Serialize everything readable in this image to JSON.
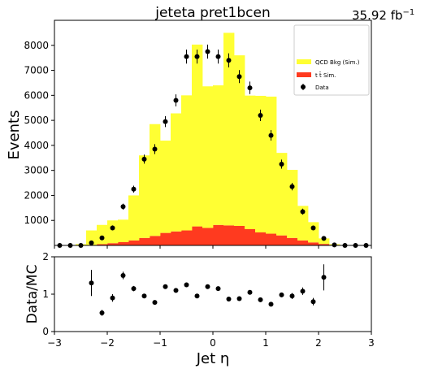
{
  "chart_data": [
    {
      "type": "bar",
      "title": "jeteta  pret1bcen",
      "luminosity_value": "35.92",
      "luminosity_unit": "fb",
      "luminosity_exponent": "−1",
      "ylabel": "Events",
      "xlim": [
        -3,
        3
      ],
      "ylim": [
        0,
        9000
      ],
      "x_ticks": [
        -3,
        -2,
        -1,
        0,
        1,
        2,
        3
      ],
      "y_ticks": [
        1000,
        2000,
        3000,
        4000,
        5000,
        6000,
        7000,
        8000
      ],
      "stacked": true,
      "bin_edges": [
        -3.0,
        -2.8,
        -2.6,
        -2.4,
        -2.2,
        -2.0,
        -1.8,
        -1.6,
        -1.4,
        -1.2,
        -1.0,
        -0.8,
        -0.6,
        -0.4,
        -0.2,
        0.0,
        0.2,
        0.4,
        0.6,
        0.8,
        1.0,
        1.2,
        1.4,
        1.6,
        1.8,
        2.0,
        2.2,
        2.4,
        2.6,
        2.8,
        3.0
      ],
      "series": [
        {
          "name": "t t̄ Sim.",
          "color": "#ff3a1f",
          "values": [
            0,
            0,
            0,
            20,
            50,
            90,
            130,
            200,
            300,
            380,
            500,
            560,
            600,
            760,
            700,
            820,
            800,
            780,
            650,
            520,
            470,
            400,
            300,
            200,
            120,
            60,
            20,
            0,
            0,
            0
          ]
        },
        {
          "name": "QCD Bkg (Sim.)",
          "color": "#ffff33",
          "values": [
            0,
            0,
            50,
            580,
            770,
            910,
            900,
            1800,
            3300,
            4470,
            3690,
            4720,
            5400,
            7270,
            5660,
            5580,
            7700,
            6820,
            5340,
            5460,
            5480,
            3300,
            2720,
            1380,
            810,
            220,
            30,
            0,
            0,
            0
          ]
        }
      ],
      "data_points": {
        "name": "Data",
        "color": "#000000",
        "x": [
          -2.9,
          -2.7,
          -2.5,
          -2.3,
          -2.1,
          -1.9,
          -1.7,
          -1.5,
          -1.3,
          -1.1,
          -0.9,
          -0.7,
          -0.5,
          -0.3,
          -0.1,
          0.1,
          0.3,
          0.5,
          0.7,
          0.9,
          1.1,
          1.3,
          1.5,
          1.7,
          1.9,
          2.1,
          2.3,
          2.5,
          2.7,
          2.9
        ],
        "y": [
          0,
          0,
          0,
          100,
          300,
          700,
          1550,
          2250,
          3450,
          3850,
          4950,
          5800,
          7550,
          7550,
          7750,
          7550,
          7400,
          6750,
          6300,
          5200,
          4400,
          3250,
          2350,
          1350,
          700,
          280,
          20,
          0,
          0,
          0
        ],
        "err": [
          0,
          0,
          0,
          60,
          80,
          100,
          120,
          140,
          180,
          200,
          220,
          240,
          280,
          280,
          280,
          280,
          280,
          260,
          250,
          230,
          210,
          180,
          150,
          120,
          90,
          60,
          20,
          0,
          0,
          0
        ]
      },
      "legend_placement": "top-right"
    },
    {
      "type": "scatter",
      "ylabel": "Data/MC",
      "xlabel": "Jet η",
      "xlim": [
        -3,
        3
      ],
      "ylim": [
        0,
        2
      ],
      "x_ticks": [
        -3,
        -2,
        -1,
        0,
        1,
        2,
        3
      ],
      "y_ticks": [
        0,
        1,
        2
      ],
      "x": [
        -2.3,
        -2.1,
        -1.9,
        -1.7,
        -1.5,
        -1.3,
        -1.1,
        -0.9,
        -0.7,
        -0.5,
        -0.3,
        -0.1,
        0.1,
        0.3,
        0.5,
        0.7,
        0.9,
        1.1,
        1.3,
        1.5,
        1.7,
        1.9,
        2.1
      ],
      "y": [
        1.3,
        0.5,
        0.9,
        1.5,
        1.15,
        0.95,
        0.78,
        1.2,
        1.1,
        1.25,
        0.95,
        1.2,
        1.15,
        0.87,
        0.88,
        1.05,
        0.85,
        0.73,
        0.98,
        0.95,
        1.08,
        0.8,
        1.45
      ],
      "err": [
        0.35,
        0.08,
        0.1,
        0.1,
        0.07,
        0.06,
        0.05,
        0.06,
        0.06,
        0.06,
        0.05,
        0.05,
        0.05,
        0.05,
        0.05,
        0.06,
        0.06,
        0.06,
        0.06,
        0.08,
        0.1,
        0.1,
        0.35
      ]
    }
  ]
}
